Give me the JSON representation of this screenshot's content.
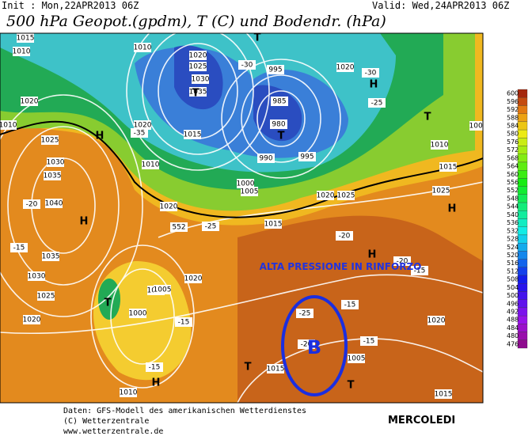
{
  "header": {
    "init": "Init : Mon,22APR2013 06Z",
    "valid": "Valid: Wed,24APR2013 06Z",
    "title": "500 hPa Geopot.(gpdm), T (C) und Bodendr. (hPa)"
  },
  "annotations": [
    "ALTA PRESSIONE IN RINFORZO",
    "B"
  ],
  "map_labels": [
    "1015",
    "1010",
    "1010",
    "1020",
    "1025",
    "1030",
    "1035",
    "995",
    "985",
    "980",
    "990",
    "995",
    "1020",
    "1010",
    "1025",
    "1030",
    "1035",
    "1040",
    "1035",
    "1030",
    "1025",
    "1020",
    "1020",
    "1015",
    "1010",
    "1000",
    "1005",
    "1020",
    "1015",
    "1015",
    "1020",
    "1005",
    "1000",
    "1010",
    "1015",
    "1005",
    "1020",
    "1015",
    "1025",
    "1015",
    "1005",
    "1010",
    "1020",
    "1020",
    "1025",
    "H",
    "H",
    "H",
    "H",
    "H",
    "H",
    "T",
    "T",
    "T",
    "T",
    "T",
    "T",
    "T",
    "-30",
    "-35",
    "-30",
    "-25",
    "-20",
    "-15",
    "-25",
    "-20",
    "-20",
    "-15",
    "-15",
    "-15",
    "-15",
    "-15",
    "-25",
    "-20",
    "552"
  ],
  "colorbar": [
    600,
    596,
    592,
    588,
    584,
    580,
    576,
    572,
    568,
    564,
    560,
    556,
    552,
    548,
    544,
    540,
    536,
    532,
    528,
    524,
    520,
    516,
    512,
    508,
    504,
    500,
    496,
    492,
    488,
    484,
    480,
    476
  ],
  "footer": {
    "source": "Daten: GFS-Modell des amerikanischen Wetterdienstes",
    "copyright": "(C) Wetterzentrale",
    "url": "www.wetterzentrale.de",
    "day": "MERCOLEDI"
  }
}
